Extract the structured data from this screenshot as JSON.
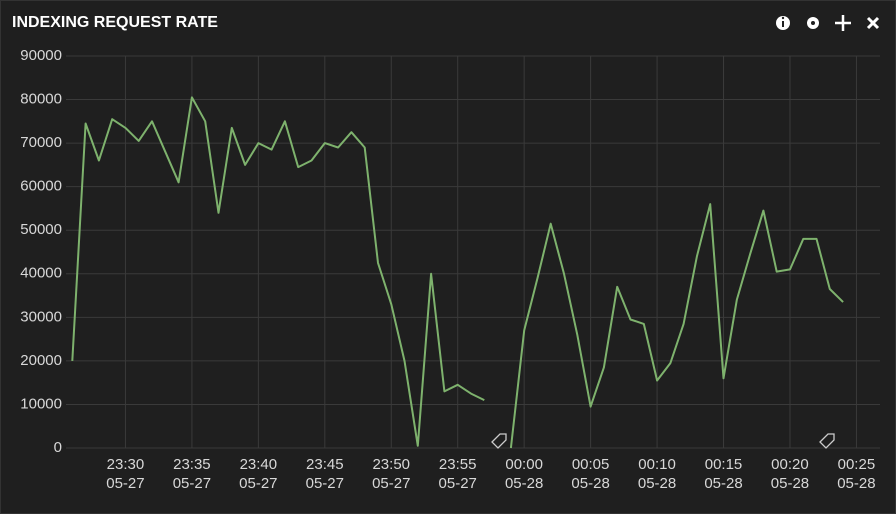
{
  "chart_data": {
    "type": "line",
    "title": "INDEXING REQUEST RATE",
    "x": [
      "05-27 23:26",
      "05-27 23:27",
      "05-27 23:28",
      "05-27 23:29",
      "05-27 23:30",
      "05-27 23:31",
      "05-27 23:32",
      "05-27 23:33",
      "05-27 23:34",
      "05-27 23:35",
      "05-27 23:36",
      "05-27 23:37",
      "05-27 23:38",
      "05-27 23:39",
      "05-27 23:40",
      "05-27 23:41",
      "05-27 23:42",
      "05-27 23:43",
      "05-27 23:44",
      "05-27 23:45",
      "05-27 23:46",
      "05-27 23:47",
      "05-27 23:48",
      "05-27 23:49",
      "05-27 23:50",
      "05-27 23:51",
      "05-27 23:52",
      "05-27 23:53",
      "05-27 23:54",
      "05-27 23:55",
      "05-27 23:56",
      "05-27 23:57",
      "05-27 23:58",
      "05-27 23:59",
      "05-28 00:00",
      "05-28 00:01",
      "05-28 00:02",
      "05-28 00:03",
      "05-28 00:04",
      "05-28 00:05",
      "05-28 00:06",
      "05-28 00:07",
      "05-28 00:08",
      "05-28 00:09",
      "05-28 00:10",
      "05-28 00:11",
      "05-28 00:12",
      "05-28 00:13",
      "05-28 00:14",
      "05-28 00:15",
      "05-28 00:16",
      "05-28 00:17",
      "05-28 00:18",
      "05-28 00:19",
      "05-28 00:20",
      "05-28 00:21",
      "05-28 00:22",
      "05-28 00:23",
      "05-28 00:24"
    ],
    "series": [
      {
        "color": "#7eb26d",
        "values": [
          20000,
          74500,
          66000,
          75500,
          73500,
          70500,
          75000,
          68000,
          61000,
          80500,
          75000,
          54000,
          73500,
          65000,
          70000,
          68500,
          75000,
          64500,
          66000,
          70000,
          69000,
          72500,
          69000,
          42500,
          33000,
          20000,
          500,
          40000,
          13000,
          14500,
          12500,
          11000,
          null,
          0,
          27000,
          39000,
          51500,
          40000,
          26000,
          9500,
          18500,
          37000,
          29500,
          28500,
          15500,
          19500,
          28500,
          44000,
          56000,
          16000,
          34000,
          44500,
          54500,
          40500,
          41000,
          48000,
          48000,
          36500,
          33500
        ]
      }
    ],
    "xlim": [
      "05-27 23:25",
      "05-28 00:27"
    ],
    "xticks": [
      {
        "value": "05-27 23:30",
        "label": "23:30\n05-27"
      },
      {
        "value": "05-27 23:35",
        "label": "23:35\n05-27"
      },
      {
        "value": "05-27 23:40",
        "label": "23:40\n05-27"
      },
      {
        "value": "05-27 23:45",
        "label": "23:45\n05-27"
      },
      {
        "value": "05-27 23:50",
        "label": "23:50\n05-27"
      },
      {
        "value": "05-27 23:55",
        "label": "23:55\n05-27"
      },
      {
        "value": "05-28 00:00",
        "label": "00:00\n05-28"
      },
      {
        "value": "05-28 00:05",
        "label": "00:05\n05-28"
      },
      {
        "value": "05-28 00:10",
        "label": "00:10\n05-28"
      },
      {
        "value": "05-28 00:15",
        "label": "00:15\n05-28"
      },
      {
        "value": "05-28 00:20",
        "label": "00:20\n05-28"
      },
      {
        "value": "05-28 00:25",
        "label": "00:25\n05-28"
      }
    ],
    "ylim": [
      0,
      90000
    ],
    "yticks": [
      0,
      10000,
      20000,
      30000,
      40000,
      50000,
      60000,
      70000,
      80000,
      90000
    ],
    "grid": true
  }
}
